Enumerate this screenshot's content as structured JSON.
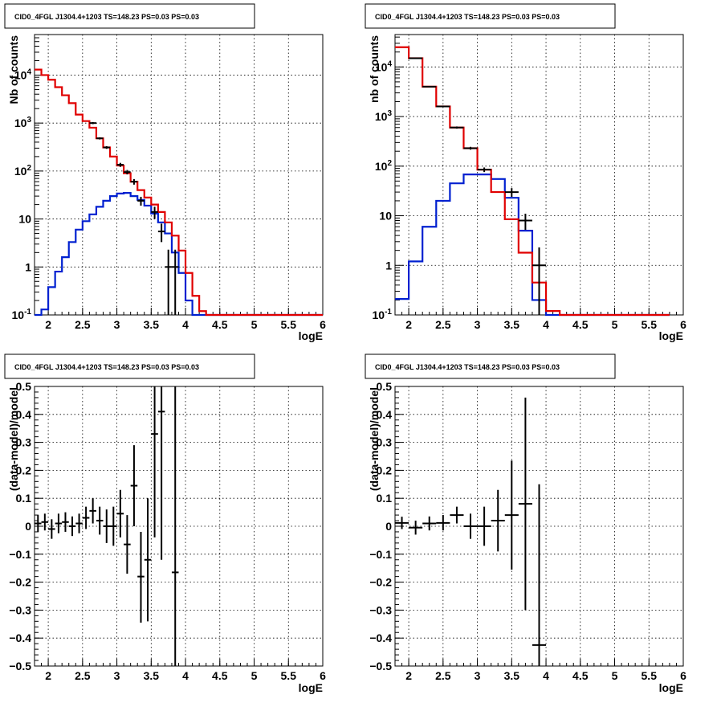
{
  "colors": {
    "data": "#000000",
    "total_model": "#e00000",
    "source_model": "#0020d0",
    "grid": "#000000"
  },
  "chart_data": [
    {
      "id": "p1",
      "type": "line",
      "scale": "log",
      "title": "CID0_4FGL J1304.4+1203 TS=148.23 PS=0.03 PS=0.03",
      "xlabel": "logE",
      "ylabel": "Nb of counts",
      "xlim": [
        1.8,
        6.0
      ],
      "ylim": [
        0.1,
        70000
      ],
      "xticks": [
        "2",
        "2.5",
        "3",
        "3.5",
        "4",
        "4.5",
        "5",
        "5.5",
        "6"
      ],
      "yticks": [
        [
          "0.1",
          "10^-1"
        ],
        [
          "1",
          "1"
        ],
        [
          "10",
          "10"
        ],
        [
          "100",
          "10^2"
        ],
        [
          "1000",
          "10^3"
        ],
        [
          "10000",
          "10^4"
        ]
      ],
      "bin_edges": [
        1.8,
        1.9,
        2.0,
        2.1,
        2.2,
        2.3,
        2.4,
        2.5,
        2.6,
        2.7,
        2.8,
        2.9,
        3.0,
        3.1,
        3.2,
        3.3,
        3.4,
        3.5,
        3.6,
        3.7,
        3.8,
        3.9,
        4.0,
        4.1,
        4.2,
        4.3,
        4.4,
        4.5,
        4.6,
        4.7,
        4.8,
        4.9,
        5.0,
        5.1,
        5.2,
        5.3,
        5.4,
        5.5,
        5.6,
        5.7,
        5.8,
        5.9,
        6.0
      ],
      "series": [
        {
          "name": "total_model",
          "color": "#e00000",
          "values": [
            13000,
            10000,
            8000,
            5600,
            3800,
            2600,
            1500,
            1100,
            800,
            480,
            310,
            200,
            130,
            90,
            60,
            40,
            28,
            20,
            14,
            8.5,
            4.5,
            2.2,
            0.75,
            0.25,
            0.12,
            0.1,
            0.1,
            0.1,
            0.1,
            0.1,
            0.1,
            0.1,
            0.1,
            0.1,
            0.1,
            0.1,
            0.1,
            0.1,
            0.1,
            0.1,
            0.1,
            0.1
          ]
        },
        {
          "name": "source_model",
          "color": "#0020d0",
          "values": [
            0.1,
            0.13,
            0.38,
            0.8,
            1.6,
            3.3,
            6.0,
            9.0,
            12.5,
            18,
            24,
            30,
            34,
            35,
            30,
            25,
            19,
            13,
            8.5,
            5,
            2.0,
            0.75,
            0.2,
            0.1,
            0.1,
            0.1,
            0.1,
            0.1,
            0.1,
            0.1,
            0.1,
            0.1,
            0.1,
            0.1,
            0.1,
            0.1,
            0.1,
            0.1,
            0.1,
            0.1,
            0.1,
            0.1
          ]
        }
      ],
      "data_points": [
        {
          "x": 2.65,
          "y": 1000,
          "lo": 950,
          "hi": 1050
        },
        {
          "x": 2.75,
          "y": 480,
          "lo": 455,
          "hi": 505
        },
        {
          "x": 2.85,
          "y": 310,
          "lo": 290,
          "hi": 330
        },
        {
          "x": 3.05,
          "y": 135,
          "lo": 122,
          "hi": 148
        },
        {
          "x": 3.15,
          "y": 95,
          "lo": 85,
          "hi": 105
        },
        {
          "x": 3.25,
          "y": 60,
          "lo": 52,
          "hi": 68
        },
        {
          "x": 3.35,
          "y": 24,
          "lo": 19,
          "hi": 29
        },
        {
          "x": 3.55,
          "y": 14,
          "lo": 10,
          "hi": 18
        },
        {
          "x": 3.65,
          "y": 5.5,
          "lo": 3.3,
          "hi": 8
        },
        {
          "x": 3.75,
          "y": 1,
          "lo": 0.1,
          "hi": 2.3
        },
        {
          "x": 3.85,
          "y": 1,
          "lo": 0.1,
          "hi": 2.3
        }
      ]
    },
    {
      "id": "p2",
      "type": "line",
      "scale": "log",
      "title": "CID0_4FGL J1304.4+1203 TS=148.23 PS=0.03 PS=0.03",
      "xlabel": "logE",
      "ylabel": "nb of counts",
      "xlim": [
        1.8,
        6.0
      ],
      "ylim": [
        0.1,
        45000
      ],
      "xticks": [
        "2",
        "2.5",
        "3",
        "3.5",
        "4",
        "4.5",
        "5",
        "5.5",
        "6"
      ],
      "yticks": [
        [
          "0.1",
          "10^-1"
        ],
        [
          "1",
          "1"
        ],
        [
          "10",
          "10"
        ],
        [
          "100",
          "10^2"
        ],
        [
          "1000",
          "10^3"
        ],
        [
          "10000",
          "10^4"
        ]
      ],
      "bin_edges": [
        1.8,
        2.0,
        2.2,
        2.4,
        2.6,
        2.8,
        3.0,
        3.2,
        3.4,
        3.6,
        3.8,
        4.0,
        4.2,
        4.4,
        4.6,
        4.8,
        5.0,
        5.2,
        5.4,
        5.6,
        5.8,
        6.0
      ],
      "series": [
        {
          "name": "total_model",
          "color": "#e00000",
          "values": [
            25000,
            15000,
            4000,
            1600,
            600,
            230,
            85,
            30,
            8.5,
            1.8,
            0.45,
            0.12,
            0.1,
            0.1,
            0.1,
            0.1,
            0.1,
            0.1,
            0.1,
            0.1
          ]
        },
        {
          "name": "source_model",
          "color": "#0020d0",
          "values": [
            0.21,
            1.2,
            6.0,
            20,
            45,
            68,
            68,
            55,
            23,
            5.0,
            0.2,
            0.1,
            0.1,
            0.1,
            0.1,
            0.1,
            0.1,
            0.1,
            0.1,
            0.1
          ]
        }
      ],
      "data_points": [
        {
          "x": 2.1,
          "y": 15000,
          "lo": 14700,
          "hi": 15300
        },
        {
          "x": 2.3,
          "y": 4000,
          "lo": 3900,
          "hi": 4100
        },
        {
          "x": 2.5,
          "y": 1600,
          "lo": 1540,
          "hi": 1660
        },
        {
          "x": 2.7,
          "y": 600,
          "lo": 570,
          "hi": 630
        },
        {
          "x": 2.9,
          "y": 230,
          "lo": 215,
          "hi": 245
        },
        {
          "x": 3.1,
          "y": 85,
          "lo": 76,
          "hi": 94
        },
        {
          "x": 3.5,
          "y": 30,
          "lo": 24,
          "hi": 36
        },
        {
          "x": 3.7,
          "y": 8,
          "lo": 5.2,
          "hi": 11
        },
        {
          "x": 3.9,
          "y": 1,
          "lo": 0.1,
          "hi": 2.3
        }
      ]
    },
    {
      "id": "p3",
      "type": "scatter",
      "scale": "linear",
      "title": "CID0_4FGL J1304.4+1203 TS=148.23 PS=0.03 PS=0.03",
      "xlabel": "logE",
      "ylabel": "(data-model)/model",
      "xlim": [
        1.8,
        6.0
      ],
      "ylim": [
        -0.5,
        0.5
      ],
      "xticks": [
        "2",
        "2.5",
        "3",
        "3.5",
        "4",
        "4.5",
        "5",
        "5.5",
        "6"
      ],
      "yticks": [
        "-0.5",
        "-0.4",
        "-0.3",
        "-0.2",
        "-0.1",
        "0",
        "0.1",
        "0.2",
        "0.3",
        "0.4",
        "0.5"
      ],
      "xerr": 0.05,
      "data_points": [
        {
          "x": 1.85,
          "y": 0.01,
          "lo": -0.02,
          "hi": 0.04
        },
        {
          "x": 1.95,
          "y": 0.015,
          "lo": -0.015,
          "hi": 0.045
        },
        {
          "x": 2.05,
          "y": -0.01,
          "lo": -0.045,
          "hi": 0.025
        },
        {
          "x": 2.15,
          "y": 0.01,
          "lo": -0.025,
          "hi": 0.045
        },
        {
          "x": 2.25,
          "y": 0.015,
          "lo": -0.02,
          "hi": 0.05
        },
        {
          "x": 2.35,
          "y": 0.0,
          "lo": -0.035,
          "hi": 0.035
        },
        {
          "x": 2.45,
          "y": 0.01,
          "lo": -0.025,
          "hi": 0.045
        },
        {
          "x": 2.55,
          "y": 0.03,
          "lo": -0.01,
          "hi": 0.07
        },
        {
          "x": 2.65,
          "y": 0.055,
          "lo": 0.01,
          "hi": 0.1
        },
        {
          "x": 2.75,
          "y": 0.02,
          "lo": -0.03,
          "hi": 0.07
        },
        {
          "x": 2.85,
          "y": 0.0,
          "lo": -0.06,
          "hi": 0.06
        },
        {
          "x": 2.95,
          "y": 0.0,
          "lo": -0.07,
          "hi": 0.07
        },
        {
          "x": 3.05,
          "y": 0.045,
          "lo": -0.04,
          "hi": 0.13
        },
        {
          "x": 3.15,
          "y": -0.065,
          "lo": -0.17,
          "hi": 0.04
        },
        {
          "x": 3.25,
          "y": 0.145,
          "lo": 0.0,
          "hi": 0.29
        },
        {
          "x": 3.35,
          "y": -0.18,
          "lo": -0.345,
          "hi": -0.02
        },
        {
          "x": 3.45,
          "y": -0.12,
          "lo": -0.34,
          "hi": 0.1
        },
        {
          "x": 3.55,
          "y": 0.33,
          "lo": -0.04,
          "hi": 0.5
        },
        {
          "x": 3.65,
          "y": 0.41,
          "lo": -0.12,
          "hi": 0.5
        },
        {
          "x": 3.85,
          "y": -0.165,
          "lo": -0.5,
          "hi": 0.5
        }
      ]
    },
    {
      "id": "p4",
      "type": "scatter",
      "scale": "linear",
      "title": "CID0_4FGL J1304.4+1203 TS=148.23 PS=0.03 PS=0.03",
      "xlabel": "logE",
      "ylabel": "(data-model)/model",
      "xlim": [
        1.8,
        6.0
      ],
      "ylim": [
        -0.5,
        0.5
      ],
      "xticks": [
        "2",
        "2.5",
        "3",
        "3.5",
        "4",
        "4.5",
        "5",
        "5.5",
        "6"
      ],
      "yticks": [
        "-0.5",
        "-0.4",
        "-0.3",
        "-0.2",
        "-0.1",
        "0",
        "0.1",
        "0.2",
        "0.3",
        "0.4",
        "0.5"
      ],
      "xerr": 0.1,
      "data_points": [
        {
          "x": 1.9,
          "y": 0.012,
          "lo": -0.01,
          "hi": 0.034
        },
        {
          "x": 2.1,
          "y": -0.005,
          "lo": -0.03,
          "hi": 0.02
        },
        {
          "x": 2.3,
          "y": 0.01,
          "lo": -0.015,
          "hi": 0.035
        },
        {
          "x": 2.5,
          "y": 0.012,
          "lo": -0.015,
          "hi": 0.04
        },
        {
          "x": 2.7,
          "y": 0.04,
          "lo": 0.01,
          "hi": 0.07
        },
        {
          "x": 2.9,
          "y": 0.0,
          "lo": -0.045,
          "hi": 0.045
        },
        {
          "x": 3.1,
          "y": 0.0,
          "lo": -0.07,
          "hi": 0.07
        },
        {
          "x": 3.3,
          "y": 0.02,
          "lo": -0.09,
          "hi": 0.13
        },
        {
          "x": 3.5,
          "y": 0.04,
          "lo": -0.155,
          "hi": 0.235
        },
        {
          "x": 3.7,
          "y": 0.08,
          "lo": -0.3,
          "hi": 0.46
        },
        {
          "x": 3.9,
          "y": -0.425,
          "lo": -0.5,
          "hi": 0.15
        }
      ]
    }
  ]
}
